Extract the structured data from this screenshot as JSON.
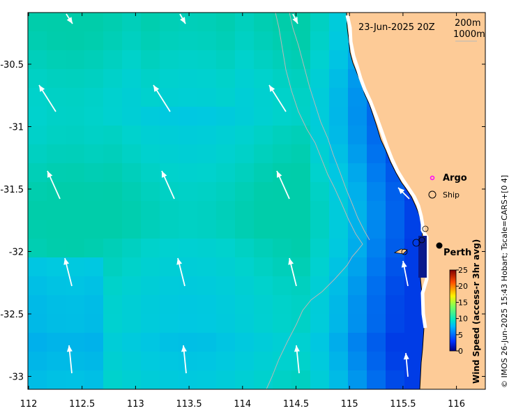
{
  "map": {
    "date_label": "23-Jun-2025 20Z",
    "contour_legend": [
      "200m",
      "1000m"
    ],
    "legend": {
      "argo": "Argo",
      "ship": "Ship"
    },
    "place_label": "Perth",
    "colorbar": {
      "title": "Wind Speed (access-r 3hr avg)",
      "ticks": [
        "0",
        "5",
        "10",
        "15",
        "20",
        "25"
      ],
      "range": [
        0,
        25
      ]
    },
    "credit": "© IMOS 26-Jun-2025 15:43 Hobart; Tscale=CARS+[0 4]",
    "x_ticks": [
      "112",
      "112.5",
      "113",
      "113.5",
      "114",
      "114.5",
      "115",
      "115.5",
      "116"
    ],
    "y_ticks": [
      "-30.5",
      "-31",
      "-31.5",
      "-32",
      "-32.5",
      "-33"
    ],
    "colors": {
      "land": "#fdcb97",
      "sea_low": "#00cfc4",
      "deep_blue": "#0a1a8c",
      "arrow": "#ffffff"
    }
  }
}
